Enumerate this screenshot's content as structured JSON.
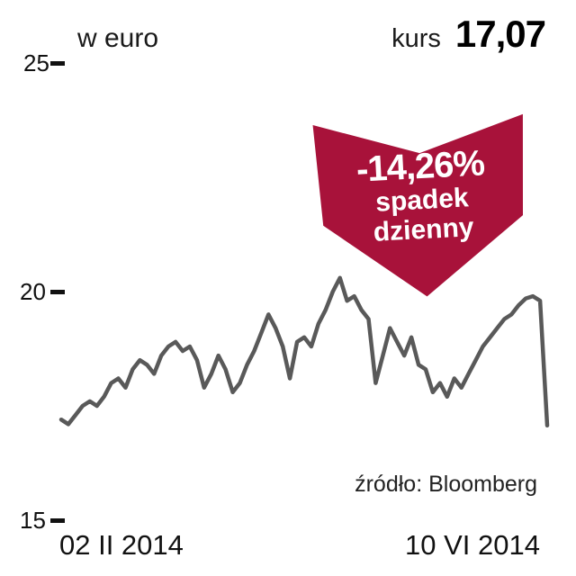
{
  "header": {
    "unit_label": "w euro",
    "price_label": "kurs",
    "price_value": "17,07"
  },
  "badge": {
    "percent": "-14,26%",
    "line1": "spadek",
    "line2": "dzienny",
    "color": "#a8123a"
  },
  "axes": {
    "y_ticks": {
      "top": "25",
      "mid": "20",
      "bottom": "15"
    },
    "x_start": "02 II 2014",
    "x_end": "10 VI 2014"
  },
  "source": "źródło: Bloomberg",
  "chart_data": {
    "type": "line",
    "title": "w euro",
    "ylabel": "kurs w euro",
    "ylim": [
      15,
      25
    ],
    "y_tick_values": [
      15,
      20,
      25
    ],
    "x_range": [
      "02 II 2014",
      "10 VI 2014"
    ],
    "grid": false,
    "legend": "none",
    "last_value": 17.07,
    "daily_change_pct": -14.26,
    "source": "Bloomberg",
    "series": [
      {
        "name": "kurs",
        "color": "#595959",
        "values": [
          17.2,
          17.1,
          17.3,
          17.5,
          17.6,
          17.5,
          17.7,
          18.0,
          18.1,
          17.9,
          18.3,
          18.5,
          18.4,
          18.2,
          18.6,
          18.8,
          18.9,
          18.7,
          18.8,
          18.5,
          17.9,
          18.2,
          18.6,
          18.3,
          17.8,
          18.0,
          18.4,
          18.7,
          19.1,
          19.5,
          19.2,
          18.8,
          18.1,
          18.9,
          19.0,
          18.8,
          19.3,
          19.6,
          20.0,
          20.3,
          19.8,
          19.9,
          19.6,
          19.4,
          18.0,
          18.6,
          19.2,
          18.9,
          18.6,
          19.0,
          18.4,
          18.3,
          17.8,
          18.0,
          17.7,
          18.1,
          17.9,
          18.2,
          18.5,
          18.8,
          19.0,
          19.2,
          19.4,
          19.5,
          19.7,
          19.85,
          19.9,
          19.8,
          17.07
        ]
      }
    ]
  }
}
